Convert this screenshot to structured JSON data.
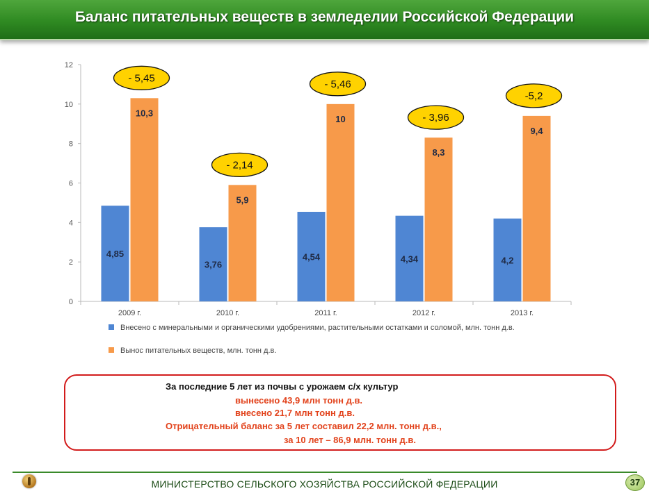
{
  "header": {
    "title": "Баланс питательных веществ в земледелии Российской Федерации"
  },
  "chart_data": {
    "type": "bar",
    "categories": [
      "2009 г.",
      "2010 г.",
      "2011 г.",
      "2012 г.",
      "2013 г."
    ],
    "ylim": [
      0,
      12
    ],
    "yticks": [
      0,
      2,
      4,
      6,
      8,
      10,
      12
    ],
    "grid": false,
    "legend_position": "bottom",
    "series": [
      {
        "name": "Внесено с минеральными и органическими удобрениями, растительными остатками и соломой, млн. тонн д.в.",
        "values": [
          4.85,
          3.76,
          4.54,
          4.34,
          4.2
        ],
        "labels": [
          "4,85",
          "3,76",
          "4,54",
          "4,34",
          "4,2"
        ],
        "color": "#4f86d3"
      },
      {
        "name": "Вынос питательных веществ, млн. тонн д.в.",
        "values": [
          10.3,
          5.9,
          10,
          8.3,
          9.4
        ],
        "labels": [
          "10,3",
          "5,9",
          "10",
          "8,3",
          "9,4"
        ],
        "color": "#f79a4a"
      }
    ],
    "annotations": [
      "- 5,45",
      "- 2,14",
      "- 5,46",
      "- 3,96",
      "-5,2"
    ],
    "annotation_fill": "#ffd200"
  },
  "summary": {
    "lines": [
      "За последние 5 лет из почвы с урожаем с/х культур",
      "вынесено  43,9  млн тонн  д.в.",
      "внесено 21,7  млн тонн  д.в.",
      "Отрицательный баланс за 5 лет составил  22,2  млн. тонн  д.в.,",
      "за 10 лет – 86,9 млн. тонн д.в."
    ]
  },
  "footer": {
    "ministry": "МИНИСТЕРСТВО СЕЛЬСКОГО ХОЗЯЙСТВА РОССИЙСКОЙ ФЕДЕРАЦИИ",
    "page_number": "37"
  }
}
